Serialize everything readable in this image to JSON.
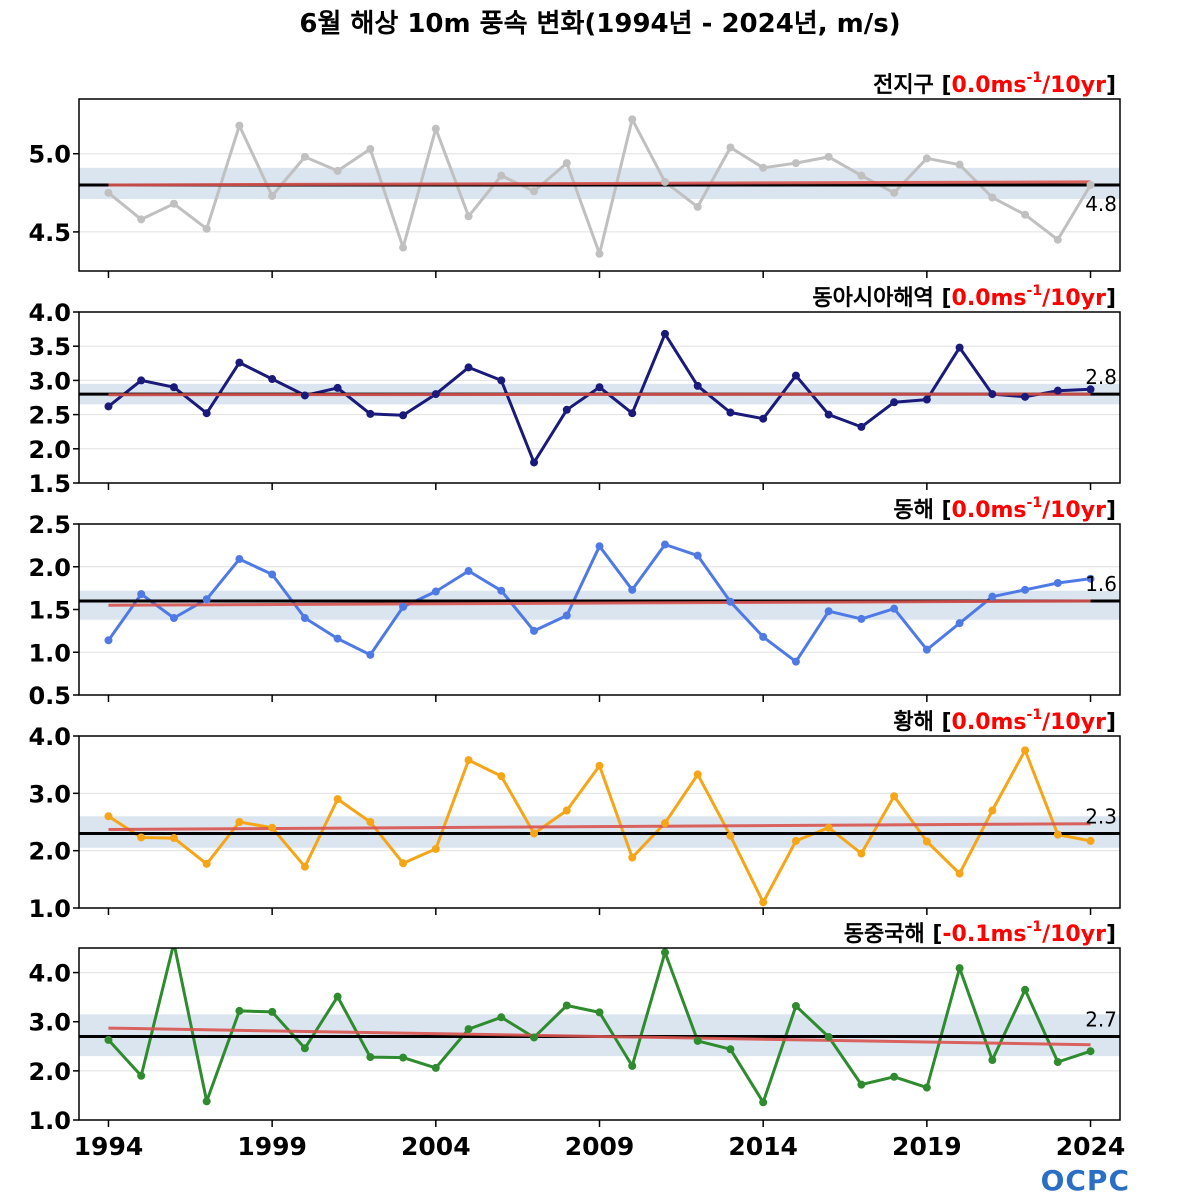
{
  "title": "6월 해상 10m 풍속 변화(1994년 - 2024년, m/s)",
  "logo": "OCPC",
  "colors": {
    "mean_line": "#000000",
    "trend_line": "#d9534f",
    "trend_text": "#ff0000",
    "band": "#dbe5f0"
  },
  "chart_data": [
    {
      "type": "line",
      "region": "전지구",
      "trend_label": "0.0ms",
      "trend_unit": "/10yr",
      "color": "#c0c0c0",
      "ylim": [
        4.25,
        5.35
      ],
      "yticks": [
        4.5,
        5.0
      ],
      "ytick_labels": [
        "4.5",
        "5.0"
      ],
      "mean": 4.8,
      "mean_label": "4.8",
      "band": [
        4.71,
        4.91
      ],
      "trend": [
        4.8,
        4.82
      ],
      "x": [
        1994,
        1995,
        1996,
        1997,
        1998,
        1999,
        2000,
        2001,
        2002,
        2003,
        2004,
        2005,
        2006,
        2007,
        2008,
        2009,
        2010,
        2011,
        2012,
        2013,
        2014,
        2015,
        2016,
        2017,
        2018,
        2019,
        2020,
        2021,
        2022,
        2023,
        2024
      ],
      "values": [
        4.75,
        4.58,
        4.68,
        4.52,
        5.18,
        4.73,
        4.98,
        4.89,
        5.03,
        4.4,
        5.16,
        4.6,
        4.86,
        4.76,
        4.94,
        4.36,
        5.22,
        4.82,
        4.66,
        5.04,
        4.91,
        4.94,
        4.98,
        4.86,
        4.75,
        4.97,
        4.93,
        4.72,
        4.61,
        4.45,
        4.8
      ]
    },
    {
      "type": "line",
      "region": "동아시아해역",
      "trend_label": "0.0ms",
      "trend_unit": "/10yr",
      "color": "#1a1a7a",
      "ylim": [
        1.5,
        4.0
      ],
      "yticks": [
        1.5,
        2.0,
        2.5,
        3.0,
        3.5,
        4.0
      ],
      "ytick_labels": [
        "1.5",
        "2.0",
        "2.5",
        "3.0",
        "3.5",
        "4.0"
      ],
      "mean": 2.8,
      "mean_label": "2.8",
      "band": [
        2.65,
        2.95
      ],
      "trend": [
        2.79,
        2.8
      ],
      "x": [
        1994,
        1995,
        1996,
        1997,
        1998,
        1999,
        2000,
        2001,
        2002,
        2003,
        2004,
        2005,
        2006,
        2007,
        2008,
        2009,
        2010,
        2011,
        2012,
        2013,
        2014,
        2015,
        2016,
        2017,
        2018,
        2019,
        2020,
        2021,
        2022,
        2023,
        2024
      ],
      "values": [
        2.62,
        3.0,
        2.9,
        2.52,
        3.26,
        3.02,
        2.78,
        2.89,
        2.51,
        2.49,
        2.8,
        3.19,
        3.0,
        1.8,
        2.57,
        2.9,
        2.52,
        3.68,
        2.92,
        2.53,
        2.44,
        3.07,
        2.5,
        2.32,
        2.68,
        2.72,
        3.48,
        2.8,
        2.76,
        2.85,
        2.87
      ]
    },
    {
      "type": "line",
      "region": "동해",
      "trend_label": "0.0ms",
      "trend_unit": "/10yr",
      "color": "#4f7ae6",
      "ylim": [
        0.5,
        2.5
      ],
      "yticks": [
        0.5,
        1.0,
        1.5,
        2.0,
        2.5
      ],
      "ytick_labels": [
        "0.5",
        "1.0",
        "1.5",
        "2.0",
        "2.5"
      ],
      "mean": 1.6,
      "mean_label": "1.6",
      "band": [
        1.38,
        1.72
      ],
      "trend": [
        1.55,
        1.6
      ],
      "x": [
        1994,
        1995,
        1996,
        1997,
        1998,
        1999,
        2000,
        2001,
        2002,
        2003,
        2004,
        2005,
        2006,
        2007,
        2008,
        2009,
        2010,
        2011,
        2012,
        2013,
        2014,
        2015,
        2016,
        2017,
        2018,
        2019,
        2020,
        2021,
        2022,
        2023,
        2024
      ],
      "values": [
        1.14,
        1.68,
        1.4,
        1.62,
        2.09,
        1.91,
        1.4,
        1.16,
        0.97,
        1.53,
        1.71,
        1.95,
        1.72,
        1.25,
        1.43,
        2.24,
        1.73,
        2.26,
        2.13,
        1.59,
        1.18,
        0.89,
        1.48,
        1.39,
        1.51,
        1.03,
        1.34,
        1.65,
        1.73,
        1.81,
        1.86
      ]
    },
    {
      "type": "line",
      "region": "황해",
      "trend_label": "0.0ms",
      "trend_unit": "/10yr",
      "color": "#f5a516",
      "ylim": [
        1.0,
        4.0
      ],
      "yticks": [
        1.0,
        2.0,
        3.0,
        4.0
      ],
      "ytick_labels": [
        "1.0",
        "2.0",
        "3.0",
        "4.0"
      ],
      "mean": 2.3,
      "mean_label": "2.3",
      "band": [
        2.05,
        2.6
      ],
      "trend": [
        2.37,
        2.47
      ],
      "x": [
        1994,
        1995,
        1996,
        1997,
        1998,
        1999,
        2000,
        2001,
        2002,
        2003,
        2004,
        2005,
        2006,
        2007,
        2008,
        2009,
        2010,
        2011,
        2012,
        2013,
        2014,
        2015,
        2016,
        2017,
        2018,
        2019,
        2020,
        2021,
        2022,
        2023,
        2024
      ],
      "values": [
        2.6,
        2.23,
        2.22,
        1.77,
        2.5,
        2.4,
        1.72,
        2.9,
        2.5,
        1.78,
        2.03,
        3.58,
        3.3,
        2.3,
        2.7,
        3.48,
        1.88,
        2.48,
        3.33,
        2.26,
        1.1,
        2.17,
        2.4,
        1.95,
        2.95,
        2.16,
        1.6,
        2.7,
        3.75,
        2.28,
        2.17
      ]
    },
    {
      "type": "line",
      "region": "동중국해",
      "trend_label": "-0.1ms",
      "trend_unit": "/10yr",
      "color": "#2e8b2e",
      "ylim": [
        1.0,
        4.5
      ],
      "yticks": [
        1.0,
        2.0,
        3.0,
        4.0
      ],
      "ytick_labels": [
        "1.0",
        "2.0",
        "3.0",
        "4.0"
      ],
      "mean": 2.7,
      "mean_label": "2.7",
      "band": [
        2.3,
        3.15
      ],
      "trend": [
        2.87,
        2.53
      ],
      "x": [
        1994,
        1995,
        1996,
        1997,
        1998,
        1999,
        2000,
        2001,
        2002,
        2003,
        2004,
        2005,
        2006,
        2007,
        2008,
        2009,
        2010,
        2011,
        2012,
        2013,
        2014,
        2015,
        2016,
        2017,
        2018,
        2019,
        2020,
        2021,
        2022,
        2023,
        2024
      ],
      "values": [
        2.63,
        1.9,
        4.6,
        1.38,
        3.22,
        3.2,
        2.46,
        3.51,
        2.28,
        2.27,
        2.06,
        2.85,
        3.09,
        2.68,
        3.33,
        3.19,
        2.1,
        4.41,
        2.61,
        2.44,
        1.36,
        3.32,
        2.69,
        1.72,
        1.88,
        1.66,
        4.09,
        2.22,
        3.65,
        2.18,
        2.4
      ]
    }
  ],
  "xaxis": {
    "ticks": [
      1994,
      1999,
      2004,
      2009,
      2014,
      2019,
      2024
    ],
    "tick_labels": [
      "1994",
      "1999",
      "2004",
      "2009",
      "2014",
      "2019",
      "2024"
    ],
    "xlim": [
      1993.1,
      2024.9
    ]
  }
}
